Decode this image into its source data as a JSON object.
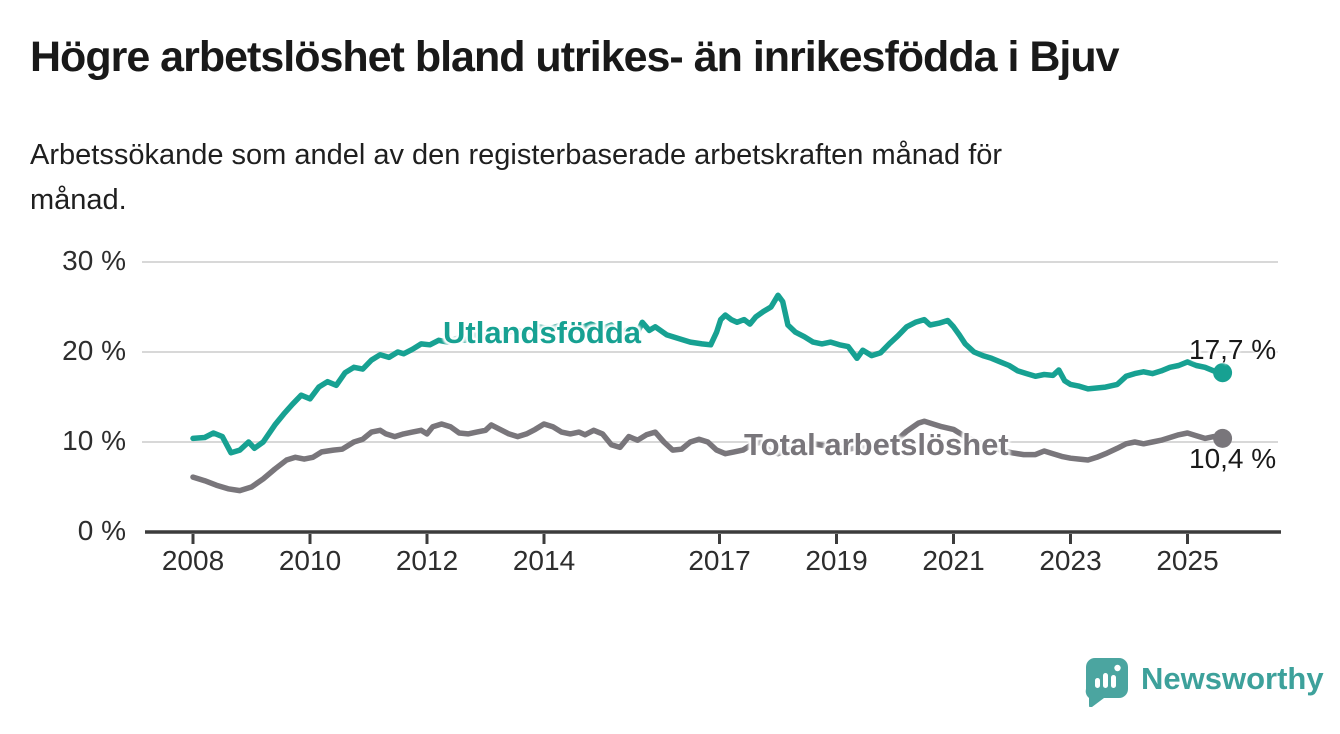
{
  "header": {
    "title": "Högre arbetslöshet bland utrikes- än inrikesfödda i Bjuv",
    "subtitle_lines": [
      "Arbetssökande som andel av den registerbaserade arbetskraften månad för",
      "månad."
    ]
  },
  "colors": {
    "series_utlandsfodda": "#17a192",
    "series_total": "#79767b",
    "gridline": "#d8d8d8",
    "axis": "#3c3c3c",
    "text": "#2d2d2d",
    "title_text": "#191919",
    "logo_mark": "#4ba5a0",
    "logo_text": "#3da19b",
    "background": "#ffffff"
  },
  "logo": {
    "text": "Newsworthy"
  },
  "chart_data": {
    "type": "line",
    "title": "Högre arbetslöshet bland utrikes- än inrikesfödda i Bjuv",
    "subtitle": "Arbetssökande som andel av den registerbaserade arbetskraften månad för månad.",
    "xlabel": "",
    "ylabel": "",
    "grid": "horizontal",
    "legend_position": "inline-labels",
    "x_range": [
      2007.2,
      2026.6
    ],
    "y_range": [
      0,
      32
    ],
    "x_ticks": [
      {
        "value": 2008,
        "label": "2008"
      },
      {
        "value": 2010,
        "label": "2010"
      },
      {
        "value": 2012,
        "label": "2012"
      },
      {
        "value": 2014,
        "label": "2014"
      },
      {
        "value": 2017,
        "label": "2017"
      },
      {
        "value": 2019,
        "label": "2019"
      },
      {
        "value": 2021,
        "label": "2021"
      },
      {
        "value": 2023,
        "label": "2023"
      },
      {
        "value": 2025,
        "label": "2025"
      }
    ],
    "y_ticks": [
      {
        "value": 0,
        "label": "0 %"
      },
      {
        "value": 10,
        "label": "10 %"
      },
      {
        "value": 20,
        "label": "20 %"
      },
      {
        "value": 30,
        "label": "30 %"
      }
    ],
    "series": [
      {
        "name": "Utlandsfödda",
        "color": "#17a192",
        "end_label": "17,7 %",
        "end_value": 17.7,
        "points": [
          [
            2008.0,
            10.4
          ],
          [
            2008.2,
            10.5
          ],
          [
            2008.35,
            11.0
          ],
          [
            2008.5,
            10.6
          ],
          [
            2008.65,
            8.8
          ],
          [
            2008.8,
            9.1
          ],
          [
            2008.95,
            10.0
          ],
          [
            2009.05,
            9.3
          ],
          [
            2009.2,
            10.0
          ],
          [
            2009.4,
            11.9
          ],
          [
            2009.55,
            13.1
          ],
          [
            2009.7,
            14.2
          ],
          [
            2009.85,
            15.2
          ],
          [
            2010.0,
            14.8
          ],
          [
            2010.15,
            16.1
          ],
          [
            2010.3,
            16.7
          ],
          [
            2010.45,
            16.3
          ],
          [
            2010.6,
            17.7
          ],
          [
            2010.75,
            18.3
          ],
          [
            2010.9,
            18.1
          ],
          [
            2011.05,
            19.1
          ],
          [
            2011.2,
            19.7
          ],
          [
            2011.35,
            19.4
          ],
          [
            2011.5,
            20.0
          ],
          [
            2011.6,
            19.8
          ],
          [
            2011.75,
            20.3
          ],
          [
            2011.9,
            20.9
          ],
          [
            2012.05,
            20.8
          ],
          [
            2012.2,
            21.3
          ],
          [
            2012.35,
            21.1
          ],
          [
            2012.5,
            21.5
          ],
          [
            2012.65,
            21.3
          ],
          [
            2012.8,
            21.9
          ],
          [
            2012.95,
            21.7
          ],
          [
            2013.1,
            22.2
          ],
          [
            2013.3,
            22.0
          ],
          [
            2013.5,
            22.4
          ],
          [
            2013.7,
            22.2
          ],
          [
            2013.9,
            22.8
          ],
          [
            2014.1,
            22.6
          ],
          [
            2014.3,
            23.0
          ],
          [
            2014.45,
            22.2
          ],
          [
            2014.6,
            22.6
          ],
          [
            2014.8,
            23.1
          ],
          [
            2015.0,
            22.6
          ],
          [
            2015.15,
            23.0
          ],
          [
            2015.3,
            22.0
          ],
          [
            2015.45,
            22.6
          ],
          [
            2015.6,
            22.2
          ],
          [
            2015.68,
            23.3
          ],
          [
            2015.8,
            22.4
          ],
          [
            2015.9,
            22.8
          ],
          [
            2016.1,
            21.9
          ],
          [
            2016.3,
            21.5
          ],
          [
            2016.5,
            21.1
          ],
          [
            2016.7,
            20.9
          ],
          [
            2016.85,
            20.8
          ],
          [
            2016.95,
            22.2
          ],
          [
            2017.02,
            23.6
          ],
          [
            2017.1,
            24.1
          ],
          [
            2017.2,
            23.6
          ],
          [
            2017.3,
            23.3
          ],
          [
            2017.42,
            23.6
          ],
          [
            2017.52,
            23.1
          ],
          [
            2017.62,
            23.9
          ],
          [
            2017.75,
            24.5
          ],
          [
            2017.88,
            25.0
          ],
          [
            2018.0,
            26.3
          ],
          [
            2018.08,
            25.6
          ],
          [
            2018.17,
            23.0
          ],
          [
            2018.3,
            22.2
          ],
          [
            2018.45,
            21.7
          ],
          [
            2018.6,
            21.1
          ],
          [
            2018.75,
            20.9
          ],
          [
            2018.9,
            21.1
          ],
          [
            2019.05,
            20.8
          ],
          [
            2019.2,
            20.6
          ],
          [
            2019.35,
            19.3
          ],
          [
            2019.45,
            20.2
          ],
          [
            2019.6,
            19.6
          ],
          [
            2019.75,
            19.9
          ],
          [
            2019.9,
            20.9
          ],
          [
            2020.05,
            21.8
          ],
          [
            2020.2,
            22.8
          ],
          [
            2020.35,
            23.3
          ],
          [
            2020.5,
            23.6
          ],
          [
            2020.6,
            23.0
          ],
          [
            2020.75,
            23.2
          ],
          [
            2020.9,
            23.5
          ],
          [
            2021.0,
            22.8
          ],
          [
            2021.1,
            21.9
          ],
          [
            2021.2,
            20.9
          ],
          [
            2021.35,
            20.0
          ],
          [
            2021.5,
            19.6
          ],
          [
            2021.65,
            19.3
          ],
          [
            2021.8,
            18.9
          ],
          [
            2021.95,
            18.5
          ],
          [
            2022.1,
            17.9
          ],
          [
            2022.25,
            17.6
          ],
          [
            2022.4,
            17.3
          ],
          [
            2022.55,
            17.5
          ],
          [
            2022.7,
            17.4
          ],
          [
            2022.8,
            18.0
          ],
          [
            2022.9,
            16.8
          ],
          [
            2023.0,
            16.4
          ],
          [
            2023.15,
            16.2
          ],
          [
            2023.3,
            15.9
          ],
          [
            2023.45,
            16.0
          ],
          [
            2023.6,
            16.1
          ],
          [
            2023.8,
            16.4
          ],
          [
            2023.95,
            17.3
          ],
          [
            2024.1,
            17.6
          ],
          [
            2024.25,
            17.8
          ],
          [
            2024.4,
            17.6
          ],
          [
            2024.55,
            17.9
          ],
          [
            2024.7,
            18.3
          ],
          [
            2024.85,
            18.5
          ],
          [
            2025.0,
            18.9
          ],
          [
            2025.15,
            18.5
          ],
          [
            2025.3,
            18.3
          ],
          [
            2025.45,
            17.9
          ],
          [
            2025.6,
            17.7
          ]
        ]
      },
      {
        "name": "Total arbetslöshet",
        "color": "#79767b",
        "end_label": "10,4 %",
        "end_value": 10.4,
        "points": [
          [
            2008.0,
            6.1
          ],
          [
            2008.2,
            5.7
          ],
          [
            2008.4,
            5.2
          ],
          [
            2008.6,
            4.8
          ],
          [
            2008.8,
            4.6
          ],
          [
            2009.0,
            5.0
          ],
          [
            2009.2,
            5.9
          ],
          [
            2009.4,
            7.0
          ],
          [
            2009.6,
            8.0
          ],
          [
            2009.75,
            8.3
          ],
          [
            2009.9,
            8.1
          ],
          [
            2010.05,
            8.3
          ],
          [
            2010.2,
            8.9
          ],
          [
            2010.4,
            9.1
          ],
          [
            2010.55,
            9.2
          ],
          [
            2010.75,
            10.0
          ],
          [
            2010.9,
            10.3
          ],
          [
            2011.05,
            11.1
          ],
          [
            2011.2,
            11.3
          ],
          [
            2011.3,
            10.9
          ],
          [
            2011.45,
            10.6
          ],
          [
            2011.6,
            10.9
          ],
          [
            2011.75,
            11.1
          ],
          [
            2011.9,
            11.3
          ],
          [
            2012.0,
            10.9
          ],
          [
            2012.1,
            11.7
          ],
          [
            2012.25,
            12.0
          ],
          [
            2012.4,
            11.7
          ],
          [
            2012.55,
            11.0
          ],
          [
            2012.7,
            10.9
          ],
          [
            2012.85,
            11.1
          ],
          [
            2013.0,
            11.3
          ],
          [
            2013.1,
            11.9
          ],
          [
            2013.25,
            11.4
          ],
          [
            2013.4,
            10.9
          ],
          [
            2013.55,
            10.6
          ],
          [
            2013.7,
            10.9
          ],
          [
            2013.85,
            11.4
          ],
          [
            2014.0,
            12.0
          ],
          [
            2014.15,
            11.7
          ],
          [
            2014.3,
            11.1
          ],
          [
            2014.45,
            10.9
          ],
          [
            2014.6,
            11.1
          ],
          [
            2014.7,
            10.8
          ],
          [
            2014.85,
            11.3
          ],
          [
            2015.0,
            10.9
          ],
          [
            2015.15,
            9.7
          ],
          [
            2015.3,
            9.4
          ],
          [
            2015.45,
            10.6
          ],
          [
            2015.6,
            10.2
          ],
          [
            2015.75,
            10.8
          ],
          [
            2015.9,
            11.1
          ],
          [
            2016.05,
            10.0
          ],
          [
            2016.2,
            9.1
          ],
          [
            2016.35,
            9.2
          ],
          [
            2016.5,
            10.0
          ],
          [
            2016.65,
            10.3
          ],
          [
            2016.8,
            10.0
          ],
          [
            2016.95,
            9.1
          ],
          [
            2017.1,
            8.7
          ],
          [
            2017.25,
            8.9
          ],
          [
            2017.4,
            9.1
          ],
          [
            2017.55,
            9.7
          ],
          [
            2017.7,
            10.0
          ],
          [
            2017.85,
            9.1
          ],
          [
            2018.0,
            8.7
          ],
          [
            2018.2,
            9.2
          ],
          [
            2018.4,
            9.6
          ],
          [
            2018.6,
            9.8
          ],
          [
            2018.8,
            9.6
          ],
          [
            2019.0,
            9.4
          ],
          [
            2019.2,
            9.2
          ],
          [
            2019.4,
            9.4
          ],
          [
            2019.6,
            9.3
          ],
          [
            2019.8,
            9.6
          ],
          [
            2020.0,
            10.0
          ],
          [
            2020.2,
            11.2
          ],
          [
            2020.4,
            12.1
          ],
          [
            2020.5,
            12.3
          ],
          [
            2020.65,
            12.0
          ],
          [
            2020.8,
            11.7
          ],
          [
            2021.0,
            11.4
          ],
          [
            2021.2,
            10.6
          ],
          [
            2021.4,
            10.0
          ],
          [
            2021.6,
            9.6
          ],
          [
            2021.8,
            9.1
          ],
          [
            2022.0,
            8.8
          ],
          [
            2022.2,
            8.6
          ],
          [
            2022.4,
            8.6
          ],
          [
            2022.55,
            9.0
          ],
          [
            2022.7,
            8.7
          ],
          [
            2022.85,
            8.4
          ],
          [
            2023.0,
            8.2
          ],
          [
            2023.15,
            8.1
          ],
          [
            2023.3,
            8.0
          ],
          [
            2023.45,
            8.3
          ],
          [
            2023.6,
            8.7
          ],
          [
            2023.8,
            9.3
          ],
          [
            2023.95,
            9.8
          ],
          [
            2024.1,
            10.0
          ],
          [
            2024.25,
            9.8
          ],
          [
            2024.4,
            10.0
          ],
          [
            2024.55,
            10.2
          ],
          [
            2024.7,
            10.5
          ],
          [
            2024.85,
            10.8
          ],
          [
            2025.0,
            11.0
          ],
          [
            2025.15,
            10.7
          ],
          [
            2025.3,
            10.4
          ],
          [
            2025.45,
            10.6
          ],
          [
            2025.6,
            10.4
          ]
        ]
      }
    ]
  }
}
